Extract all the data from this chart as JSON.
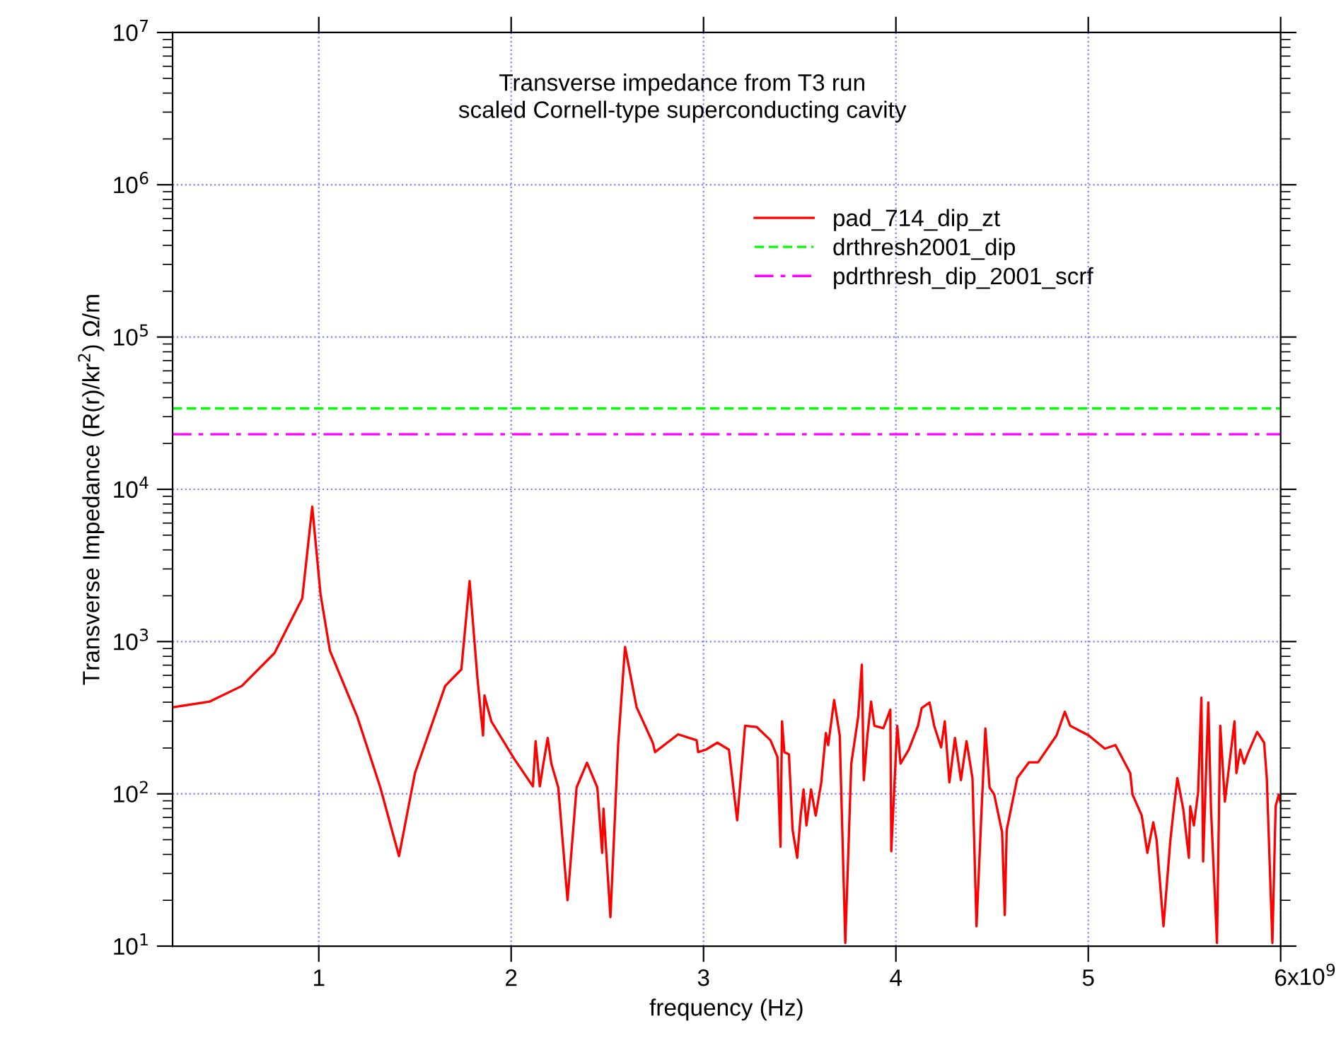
{
  "chart_data": {
    "type": "line",
    "title": "Transverse impedance from T3 run",
    "subtitle": "scaled Cornell-type superconducting cavity",
    "xlabel": "frequency (Hz)",
    "ylabel": "Transverse Impedance (R(r)/kr$^{2}$) Ω/m",
    "log": "y",
    "xlim": [
      0.24,
      6.0
    ],
    "xticks": [
      1,
      2,
      3,
      4,
      5,
      6
    ],
    "annotations": [
      "x10$^{9}$"
    ],
    "ylim": [
      10,
      10000000
    ],
    "yticks": [
      {
        "value": 10,
        "label": "10$^{1}$"
      },
      {
        "value": 100,
        "label": "10$^{2}$"
      },
      {
        "value": 1000,
        "label": "10$^{3}$"
      },
      {
        "value": 10000,
        "label": "10$^{4}$"
      },
      {
        "value": 100000,
        "label": "10$^{5}$"
      },
      {
        "value": 1000000,
        "label": "10$^{6}$"
      },
      {
        "value": 10000000,
        "label": "10$^{7}$"
      }
    ],
    "grid": true,
    "legend": "top right",
    "series": [
      {
        "name": "pad_714_dip_zt",
        "color": "#ff0000",
        "line_style": "solid",
        "x": [
          0.245,
          0.434,
          0.6,
          0.77,
          0.914,
          0.966,
          1.009,
          1.058,
          1.2,
          1.32,
          1.417,
          1.5,
          1.657,
          1.741,
          1.784,
          1.825,
          1.854,
          1.861,
          1.897,
          2.017,
          2.113,
          2.127,
          2.149,
          2.165,
          2.19,
          2.209,
          2.245,
          2.293,
          2.34,
          2.394,
          2.448,
          2.473,
          2.48,
          2.516,
          2.556,
          2.592,
          2.652,
          2.736,
          2.748,
          2.868,
          2.964,
          2.972,
          3.012,
          3.072,
          3.132,
          3.175,
          3.216,
          3.276,
          3.348,
          3.384,
          3.4,
          3.408,
          3.42,
          3.444,
          3.463,
          3.487,
          3.504,
          3.52,
          3.535,
          3.559,
          3.583,
          3.612,
          3.636,
          3.648,
          3.679,
          3.708,
          3.737,
          3.768,
          3.804,
          3.823,
          3.833,
          3.852,
          3.871,
          3.888,
          3.935,
          3.971,
          3.976,
          4.007,
          4.024,
          4.067,
          4.115,
          4.134,
          4.175,
          4.199,
          4.235,
          4.254,
          4.278,
          4.307,
          4.338,
          4.367,
          4.398,
          4.419,
          4.444,
          4.465,
          4.487,
          4.511,
          4.552,
          4.566,
          4.576,
          4.631,
          4.691,
          4.739,
          4.835,
          4.878,
          4.906,
          5.002,
          5.086,
          5.141,
          5.218,
          5.23,
          5.278,
          5.307,
          5.338,
          5.355,
          5.391,
          5.427,
          5.446,
          5.463,
          5.494,
          5.523,
          5.53,
          5.549,
          5.571,
          5.588,
          5.597,
          5.624,
          5.638,
          5.669,
          5.686,
          5.71,
          5.76,
          5.77,
          5.79,
          5.81,
          5.83,
          5.878,
          5.914,
          5.928,
          5.957,
          5.974,
          5.99,
          5.998
        ],
        "values": [
          371,
          404,
          511,
          841,
          1920,
          7680,
          2050,
          870,
          321,
          110,
          39,
          137,
          511,
          656,
          2500,
          569,
          242,
          443,
          299,
          169,
          112,
          222,
          112,
          151,
          233,
          158,
          110,
          20,
          110,
          160,
          110,
          41,
          80,
          15.5,
          209,
          923,
          371,
          217,
          188,
          246,
          225,
          188,
          195,
          217,
          195,
          67,
          280,
          275,
          225,
          175,
          45,
          299,
          188,
          182,
          58,
          38,
          70,
          107,
          62,
          107,
          72,
          119,
          251,
          209,
          413,
          242,
          10.5,
          158,
          321,
          705,
          123,
          242,
          404,
          280,
          270,
          357,
          42,
          280,
          158,
          195,
          280,
          366,
          398,
          280,
          202,
          299,
          119,
          233,
          123,
          222,
          127,
          13.5,
          72,
          269,
          110,
          99,
          56,
          16,
          58,
          127,
          161,
          161,
          242,
          346,
          280,
          242,
          198,
          209,
          137,
          99,
          72,
          41,
          65,
          50,
          13.5,
          50,
          83,
          127,
          79,
          38,
          83,
          62,
          103,
          428,
          36,
          398,
          79,
          10.5,
          280,
          89,
          299,
          137,
          195,
          158,
          185,
          255,
          217,
          127,
          10.5,
          83,
          99,
          89
        ]
      },
      {
        "name": "drthresh2001_dip",
        "color": "#00ff00",
        "line_style": "dashed",
        "x": [
          0.24,
          6.0
        ],
        "values": [
          34000,
          34000
        ]
      },
      {
        "name": "pdrthresh_dip_2001_scrf",
        "color": "#ff00ff",
        "line_style": "dashdot",
        "x": [
          0.24,
          6.0
        ],
        "values": [
          23000,
          23000
        ]
      }
    ]
  }
}
